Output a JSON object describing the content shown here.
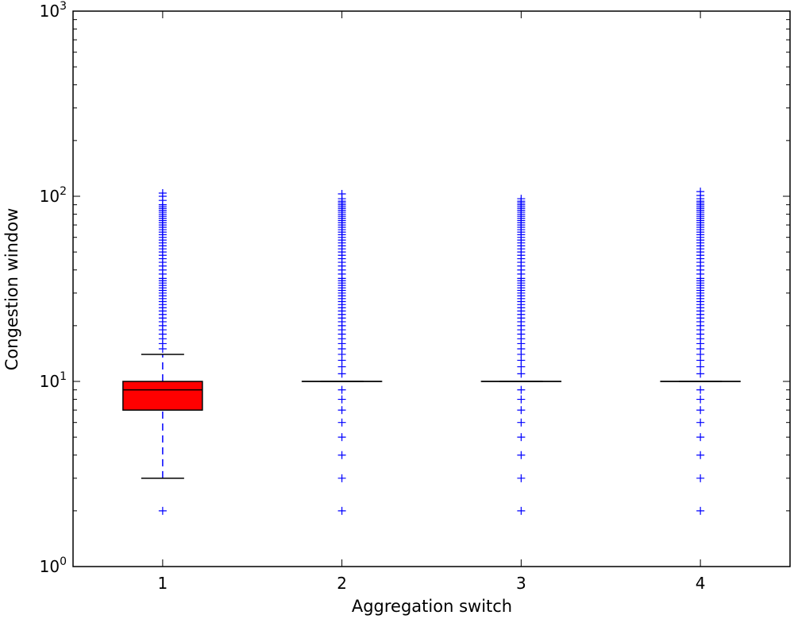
{
  "chart_data": {
    "type": "box",
    "title": "",
    "xlabel": "Aggregation switch",
    "ylabel": "Congestion window",
    "yscale": "log",
    "ylim": [
      1,
      1000
    ],
    "grid": false,
    "y_ticks": [
      {
        "value": 1,
        "base": "10",
        "exp": "0"
      },
      {
        "value": 10,
        "base": "10",
        "exp": "1"
      },
      {
        "value": 100,
        "base": "10",
        "exp": "2"
      },
      {
        "value": 1000,
        "base": "10",
        "exp": "3"
      }
    ],
    "categories": [
      "1",
      "2",
      "3",
      "4"
    ],
    "boxes": [
      {
        "label": "1",
        "whisker_low": 3,
        "q1": 7,
        "median": 9,
        "q3": 10,
        "whisker_high": 14,
        "fill": "#ff0000",
        "fliers": [
          2,
          15,
          16,
          17,
          18,
          19,
          20,
          21,
          22,
          23,
          24,
          25,
          26,
          27,
          28,
          29,
          30,
          31,
          32,
          33,
          34,
          35,
          36,
          38,
          40,
          42,
          44,
          46,
          48,
          50,
          52,
          54,
          56,
          58,
          60,
          62,
          64,
          66,
          68,
          70,
          72,
          74,
          76,
          78,
          80,
          82,
          84,
          86,
          88,
          90,
          95,
          100,
          104
        ]
      },
      {
        "label": "2",
        "whisker_low": 10,
        "q1": 10,
        "median": 10,
        "q3": 10,
        "whisker_high": 10,
        "fill": "#ffffff",
        "fliers": [
          2,
          3,
          4,
          5,
          6,
          7,
          8,
          9,
          11,
          12,
          13,
          14,
          15,
          16,
          17,
          18,
          19,
          20,
          21,
          22,
          23,
          24,
          25,
          26,
          27,
          28,
          29,
          30,
          31,
          32,
          33,
          34,
          35,
          36,
          38,
          40,
          42,
          44,
          46,
          48,
          50,
          52,
          54,
          56,
          58,
          60,
          62,
          64,
          66,
          68,
          70,
          72,
          74,
          76,
          78,
          80,
          82,
          84,
          86,
          88,
          90,
          92,
          94,
          97,
          103
        ]
      },
      {
        "label": "3",
        "whisker_low": 10,
        "q1": 10,
        "median": 10,
        "q3": 10,
        "whisker_high": 10,
        "fill": "#ffffff",
        "fliers": [
          2,
          3,
          4,
          5,
          6,
          7,
          8,
          9,
          11,
          12,
          13,
          14,
          15,
          16,
          17,
          18,
          19,
          20,
          21,
          22,
          23,
          24,
          25,
          26,
          27,
          28,
          29,
          30,
          31,
          32,
          33,
          34,
          35,
          36,
          38,
          40,
          42,
          44,
          46,
          48,
          50,
          52,
          54,
          56,
          58,
          60,
          62,
          64,
          66,
          68,
          70,
          72,
          74,
          76,
          78,
          80,
          82,
          84,
          86,
          88,
          90,
          92,
          94,
          97
        ]
      },
      {
        "label": "4",
        "whisker_low": 10,
        "q1": 10,
        "median": 10,
        "q3": 10,
        "whisker_high": 10,
        "fill": "#ffffff",
        "fliers": [
          2,
          3,
          4,
          5,
          6,
          7,
          8,
          9,
          11,
          12,
          13,
          14,
          15,
          16,
          17,
          18,
          19,
          20,
          21,
          22,
          23,
          24,
          25,
          26,
          27,
          28,
          29,
          30,
          31,
          32,
          33,
          34,
          35,
          36,
          38,
          40,
          42,
          44,
          46,
          48,
          50,
          52,
          54,
          56,
          58,
          60,
          62,
          64,
          66,
          68,
          70,
          72,
          74,
          76,
          78,
          80,
          82,
          84,
          86,
          88,
          90,
          92,
          94,
          97,
          101,
          106
        ]
      }
    ],
    "colors": {
      "flier": "#0000ff",
      "whisker": "#0000ff",
      "box_edge": "#000000",
      "median": "#000000"
    }
  }
}
